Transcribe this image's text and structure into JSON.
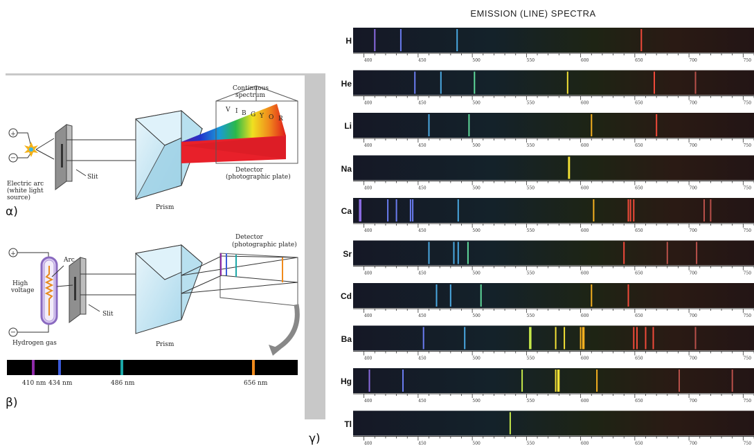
{
  "panels": {
    "alpha": {
      "letter": "α)",
      "continuous_label_1": "Continuous",
      "continuous_label_2": "spectrum",
      "spectrum_letters": [
        "V",
        "I",
        "B",
        "G",
        "Y",
        "O",
        "R"
      ],
      "slit_label": "Slit",
      "arc_label_1": "Electric arc",
      "arc_label_2": "(white light",
      "arc_label_3": "source)",
      "prism_label": "Prism",
      "detector_label_1": "Detector",
      "detector_label_2": "(photographic plate)"
    },
    "beta": {
      "letter": "β)",
      "detector_label_1": "Detector",
      "detector_label_2": "(photographic plate)",
      "arc_label": "Arc",
      "high_voltage_1": "High",
      "high_voltage_2": "voltage",
      "slit_label": "Slit",
      "gas_label": "Hydrogen gas",
      "prism_label": "Prism",
      "lines": [
        {
          "label": "410 nm",
          "color": "#8e2aa8"
        },
        {
          "label": "434 nm",
          "color": "#3a5ad8"
        },
        {
          "label": "486 nm",
          "color": "#1aa7a7"
        },
        {
          "label": "656 nm",
          "color": "#f08a1c"
        }
      ]
    },
    "gamma": {
      "letter": "γ)",
      "title": "EMISSION (LINE) SPECTRA",
      "tick_labels": [
        "400",
        "450",
        "500",
        "550",
        "600",
        "650",
        "700",
        "750"
      ],
      "elements": [
        {
          "symbol": "H",
          "lines": [
            410,
            434,
            486,
            656
          ]
        },
        {
          "symbol": "He",
          "lines": [
            447,
            471,
            502,
            588,
            668,
            706
          ]
        },
        {
          "symbol": "Li",
          "lines": [
            460,
            497,
            610,
            670
          ]
        },
        {
          "symbol": "Na",
          "lines": [
            589,
            589.6
          ]
        },
        {
          "symbol": "Ca",
          "lines": [
            396,
            397,
            422,
            430,
            443,
            445,
            487,
            612,
            644,
            646,
            649,
            714,
            720
          ]
        },
        {
          "symbol": "Sr",
          "lines": [
            460,
            483,
            487,
            496,
            640,
            680,
            707
          ]
        },
        {
          "symbol": "Cd",
          "lines": [
            467,
            480,
            508,
            610,
            644
          ]
        },
        {
          "symbol": "Ba",
          "lines": [
            455,
            493,
            553,
            554,
            577,
            585,
            600,
            602,
            603,
            649,
            652,
            660,
            667,
            706
          ]
        },
        {
          "symbol": "Hg",
          "lines": [
            405,
            436,
            546,
            577,
            579,
            580,
            615,
            691,
            740
          ]
        },
        {
          "symbol": "Tl",
          "lines": [
            535
          ]
        }
      ]
    }
  },
  "colors": {
    "strip_bg": "#141a1e",
    "prism_fill": "#cfe9f4",
    "slit_fill": "#9a9a9a",
    "detector_red": "#e8202a"
  }
}
